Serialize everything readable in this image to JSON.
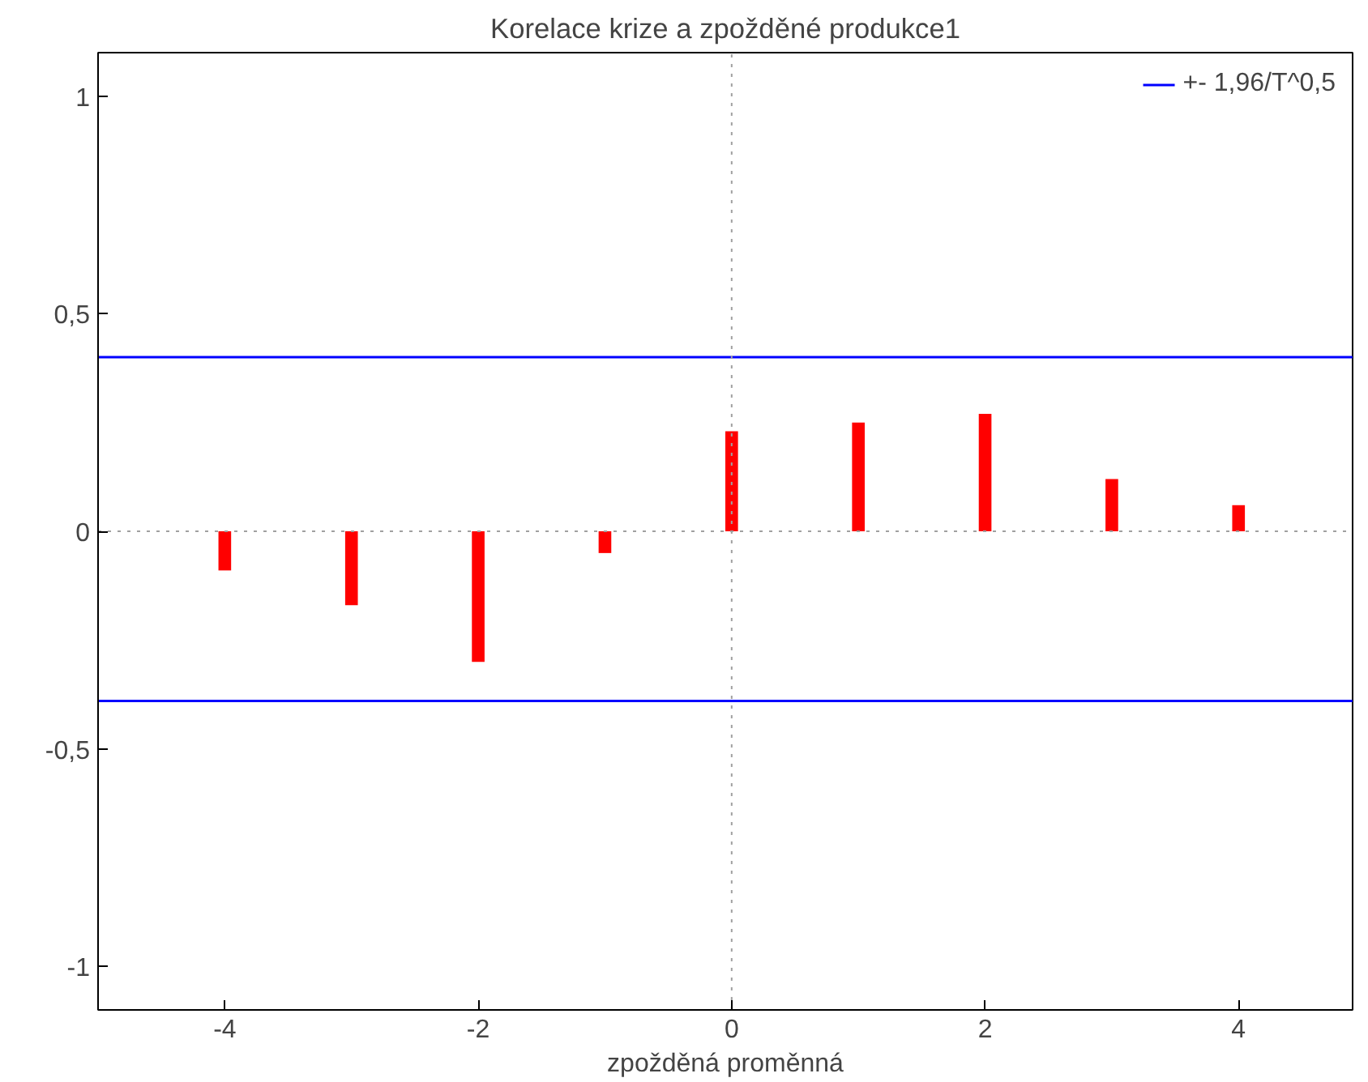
{
  "chart_data": {
    "type": "bar",
    "title": "Korelace krize a zpožděné produkce1",
    "xlabel": "zpožděná proměnná",
    "x": [
      -4,
      -3,
      -2,
      -1,
      0,
      1,
      2,
      3,
      4
    ],
    "values": [
      -0.09,
      -0.17,
      -0.3,
      -0.05,
      0.23,
      0.25,
      0.27,
      0.12,
      0.06
    ],
    "color": "#ff0000",
    "xlim": [
      -5,
      4.9
    ],
    "ylim": [
      -1.1,
      1.1
    ],
    "xticks": [
      -4,
      -2,
      0,
      2,
      4
    ],
    "yticks": [
      {
        "value": -1,
        "label": "-1"
      },
      {
        "value": -0.5,
        "label": "-0,5"
      },
      {
        "value": 0,
        "label": "0"
      },
      {
        "value": 0.5,
        "label": "0,5"
      },
      {
        "value": 1,
        "label": "1"
      }
    ],
    "ref_lines": [
      {
        "axis": "y",
        "value": 0.4,
        "label": "+- 1,96/T^0,5",
        "color": "#0000ff"
      },
      {
        "axis": "y",
        "value": -0.39,
        "color": "#0000ff"
      },
      {
        "axis": "y",
        "value": 0,
        "color": "#a0a0a0",
        "line_style": "dotted"
      },
      {
        "axis": "x",
        "value": 0,
        "color": "#a0a0a0",
        "line_style": "dotted"
      }
    ],
    "grid": false,
    "legend": "top right"
  }
}
